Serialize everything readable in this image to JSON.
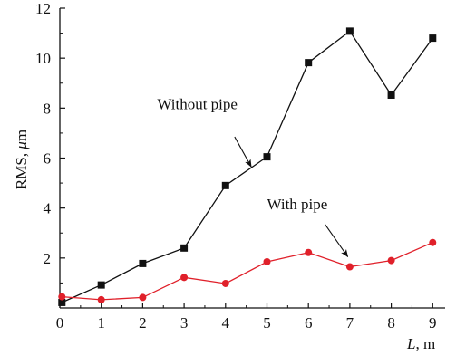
{
  "chart_data": {
    "type": "line",
    "xlabel_var": "L",
    "xlabel_unit": ", m",
    "ylabel_prefix": "RMS, ",
    "ylabel_mu": "μ",
    "ylabel_suffix": "m",
    "xlim": [
      0,
      9.3
    ],
    "ylim": [
      0,
      12
    ],
    "x_ticks": [
      0,
      1,
      2,
      3,
      4,
      5,
      6,
      7,
      8,
      9
    ],
    "y_ticks": [
      2,
      4,
      6,
      8,
      10,
      12
    ],
    "grid": false,
    "series": [
      {
        "name": "Without pipe",
        "color": "#111111",
        "marker": "square",
        "x": [
          0.05,
          1,
          2,
          3,
          4,
          5,
          6,
          7,
          8,
          9
        ],
        "y": [
          0.22,
          0.92,
          1.78,
          2.4,
          4.9,
          6.05,
          9.82,
          11.08,
          8.52,
          10.8
        ]
      },
      {
        "name": "With pipe",
        "color": "#e0202a",
        "marker": "circle",
        "x": [
          0.05,
          1,
          2,
          3,
          4,
          5,
          6,
          7,
          8,
          9
        ],
        "y": [
          0.45,
          0.33,
          0.42,
          1.22,
          0.98,
          1.85,
          2.22,
          1.65,
          1.9,
          2.62
        ]
      }
    ],
    "annotations": [
      {
        "text": "Without pipe",
        "series": 0,
        "text_at": [
          2.35,
          7.95
        ],
        "arrow_from": [
          4.22,
          6.85
        ],
        "arrow_to": [
          4.62,
          5.65
        ]
      },
      {
        "text": "With pipe",
        "series": 1,
        "text_at": [
          5.0,
          3.95
        ],
        "arrow_from": [
          6.4,
          3.35
        ],
        "arrow_to": [
          6.95,
          2.05
        ]
      }
    ]
  }
}
